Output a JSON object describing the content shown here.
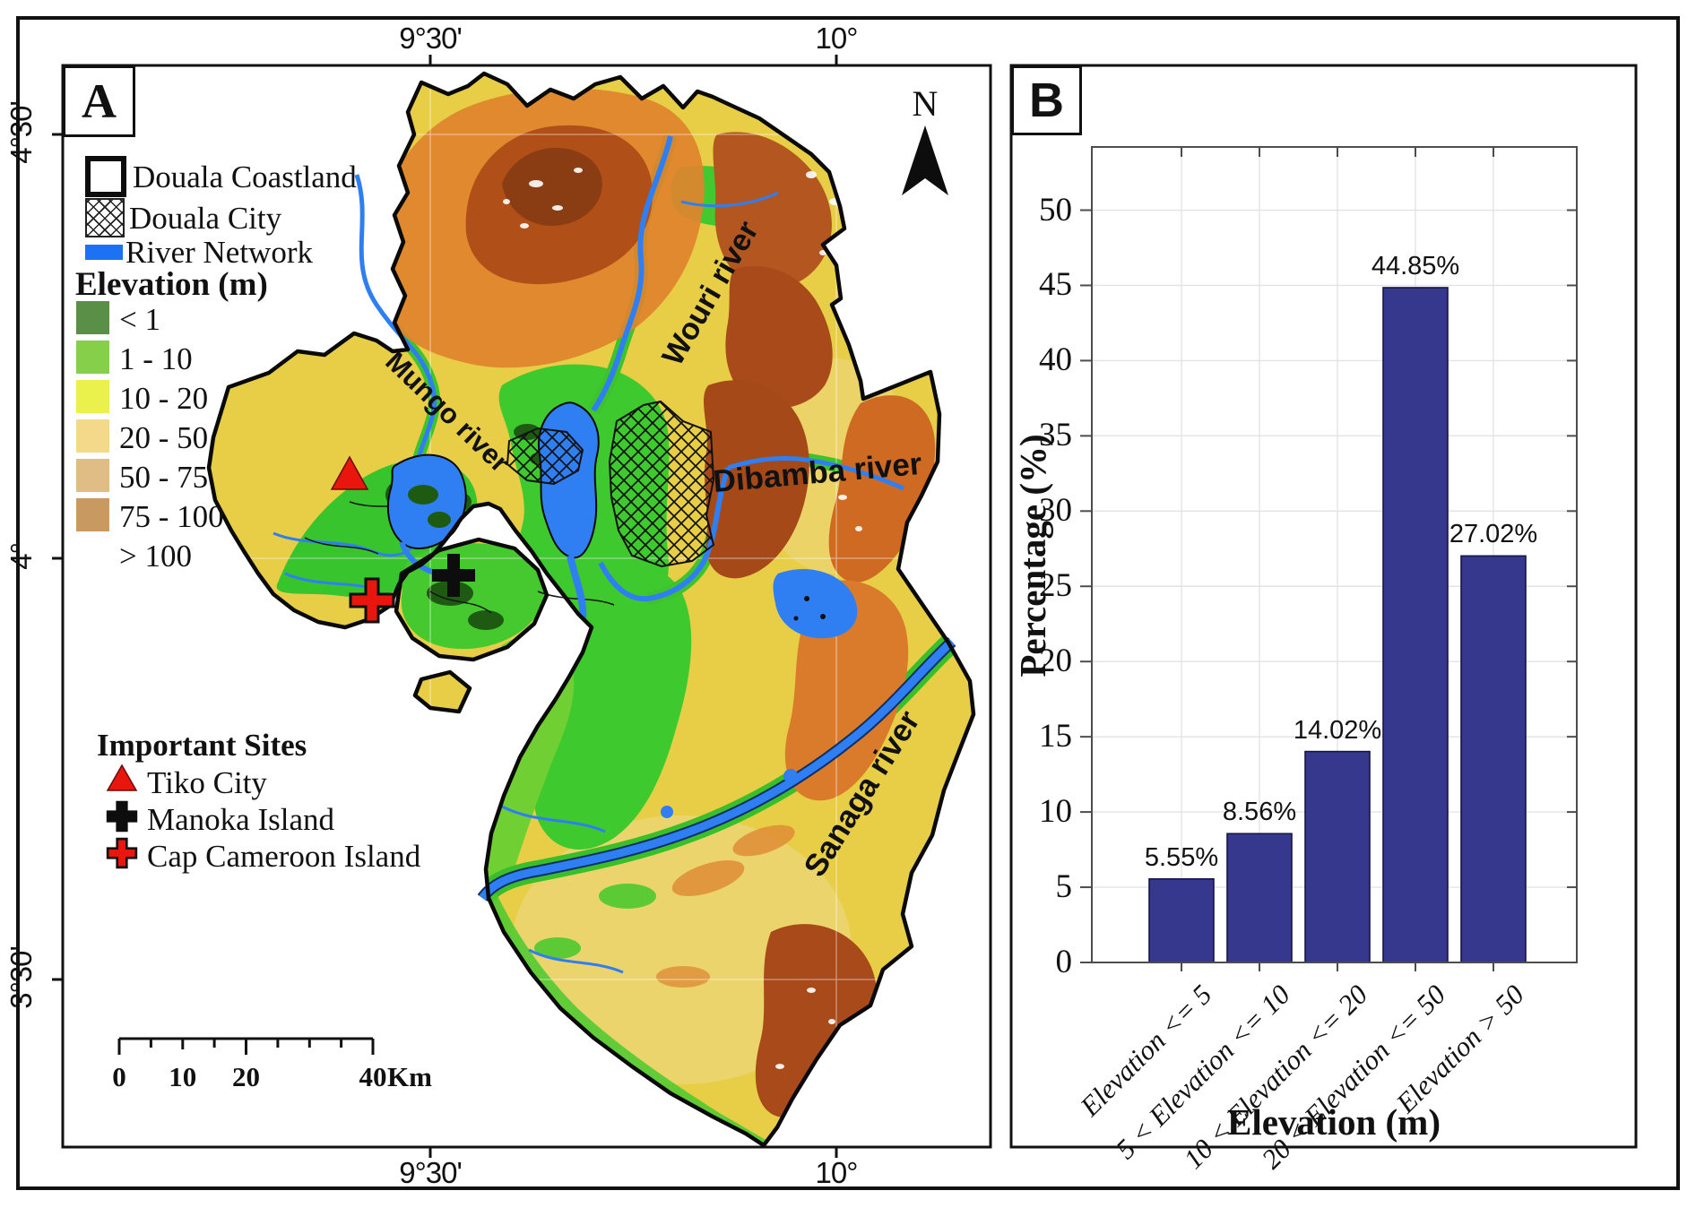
{
  "panelA": {
    "label": "A",
    "axis": {
      "top": [
        {
          "text": "9°30'"
        },
        {
          "text": "10°"
        }
      ],
      "bottom": [
        {
          "text": "9°30'"
        },
        {
          "text": "10°"
        }
      ],
      "left": [
        {
          "text": "4°30'"
        },
        {
          "text": "4°"
        },
        {
          "text": "3°30'"
        }
      ]
    },
    "legend": {
      "boundary_label": "Douala Coastland",
      "city_label": "Douala City",
      "river_label": "River Network",
      "river_color": "#1b72f2",
      "elevation_title": "Elevation (m)",
      "classes": [
        {
          "label": "< 1",
          "color": "#598f46"
        },
        {
          "label": "1 - 10",
          "color": "#86cf4a"
        },
        {
          "label": "10 - 20",
          "color": "#eaf04c"
        },
        {
          "label": "20 - 50",
          "color": "#f5d98b"
        },
        {
          "label": "50 - 75",
          "color": "#dfbd84"
        },
        {
          "label": "75 - 100",
          "color": "#c89a62"
        },
        {
          "label": "> 100",
          "color": null
        }
      ],
      "sites_title": "Important Sites",
      "sites": [
        {
          "label": "Tiko City",
          "marker": "triangle",
          "color": "#e8160c"
        },
        {
          "label": "Manoka Island",
          "marker": "cross",
          "color": "#0d0d0d"
        },
        {
          "label": "Cap Cameroon Island",
          "marker": "cross",
          "color": "#e8160c"
        }
      ]
    },
    "map_labels": [
      {
        "text": "Mungo river"
      },
      {
        "text": "Wouri river"
      },
      {
        "text": "Dibamba river"
      },
      {
        "text": "Sanaga river"
      }
    ],
    "north_label": "N",
    "scalebar": {
      "labels": [
        {
          "text": "0"
        },
        {
          "text": "10"
        },
        {
          "text": "20"
        },
        {
          "text": "40"
        }
      ],
      "unit": "Km"
    }
  },
  "panelB": {
    "label": "B"
  },
  "chart_data": {
    "type": "bar",
    "categories": [
      "Elevation <= 5",
      "5 < Elevation <= 10",
      "10 < Elevation <= 20",
      "20 < Elevation <= 50",
      "Elevation > 50"
    ],
    "values": [
      5.55,
      8.56,
      14.02,
      44.85,
      27.02
    ],
    "labels": [
      "5.55%",
      "8.56%",
      "14.02%",
      "44.85%",
      "27.02%"
    ],
    "xlabel": "Elevation (m)",
    "ylabel": "Percentage (%)",
    "ylim": [
      0,
      54.2
    ],
    "yticks": [
      0,
      5,
      10,
      15,
      20,
      25,
      30,
      35,
      40,
      45,
      50
    ],
    "grid": true,
    "legend_position": "none",
    "bar_color": "#35388d",
    "bar_edge": "#15154a"
  }
}
